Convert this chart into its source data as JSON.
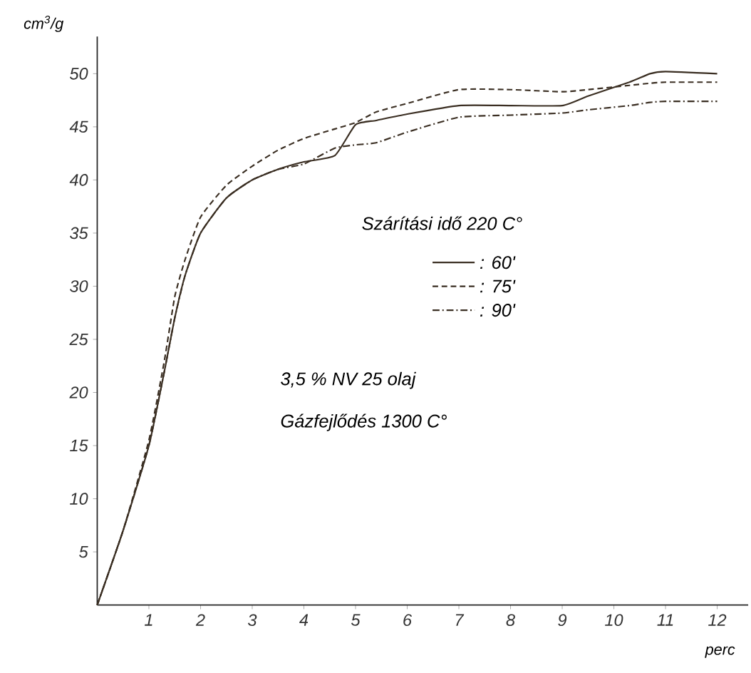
{
  "chart_data": {
    "type": "line",
    "x": [
      0,
      0.5,
      1,
      1.3,
      1.5,
      1.7,
      2,
      2.5,
      3,
      3.5,
      4,
      4.6,
      5,
      5.4,
      6,
      7,
      8,
      9,
      9.5,
      10.3,
      10.7,
      11,
      12
    ],
    "series": [
      {
        "name": ": 60'",
        "color": "#3a2e22",
        "line_style": "solid",
        "values": [
          0,
          7,
          15,
          22,
          27,
          31,
          35,
          38.3,
          40,
          41,
          41.7,
          42.3,
          45.2,
          45.6,
          46.2,
          47,
          47,
          47,
          47.9,
          49.2,
          50,
          50.2,
          50
        ]
      },
      {
        "name": ": 75'",
        "color": "#3a2e22",
        "line_style": "dashed",
        "values": [
          0,
          7,
          15.5,
          23,
          29,
          32.5,
          36.5,
          39.5,
          41.3,
          42.8,
          43.9,
          44.8,
          45.4,
          46.4,
          47.2,
          48.5,
          48.5,
          48.3,
          48.5,
          48.9,
          49.1,
          49.2,
          49.2
        ]
      },
      {
        "name": ": 90'",
        "color": "#3a2e22",
        "line_style": "dashdot",
        "values": [
          0,
          7,
          15,
          22,
          27,
          31,
          35,
          38.3,
          40,
          41,
          41.5,
          43,
          43.3,
          43.5,
          44.5,
          45.9,
          46.1,
          46.3,
          46.6,
          47,
          47.3,
          47.4,
          47.4
        ]
      }
    ],
    "legend_title": "Szárítási idő 220 C°",
    "legend": "right",
    "xlabel": "perc",
    "ylabel": "cm$^{3}$/g",
    "xlim": [
      0,
      12.6
    ],
    "ylim": [
      0,
      53.5
    ],
    "xticks": [
      1,
      2,
      3,
      4,
      5,
      6,
      7,
      8,
      9,
      10,
      11,
      12
    ],
    "yticks": [
      5,
      10,
      15,
      20,
      25,
      30,
      35,
      40,
      45,
      50
    ],
    "annotations": [
      "3,5 % NV 25 olaj",
      "Gázfejlődés 1300 C°"
    ],
    "grid": false
  }
}
